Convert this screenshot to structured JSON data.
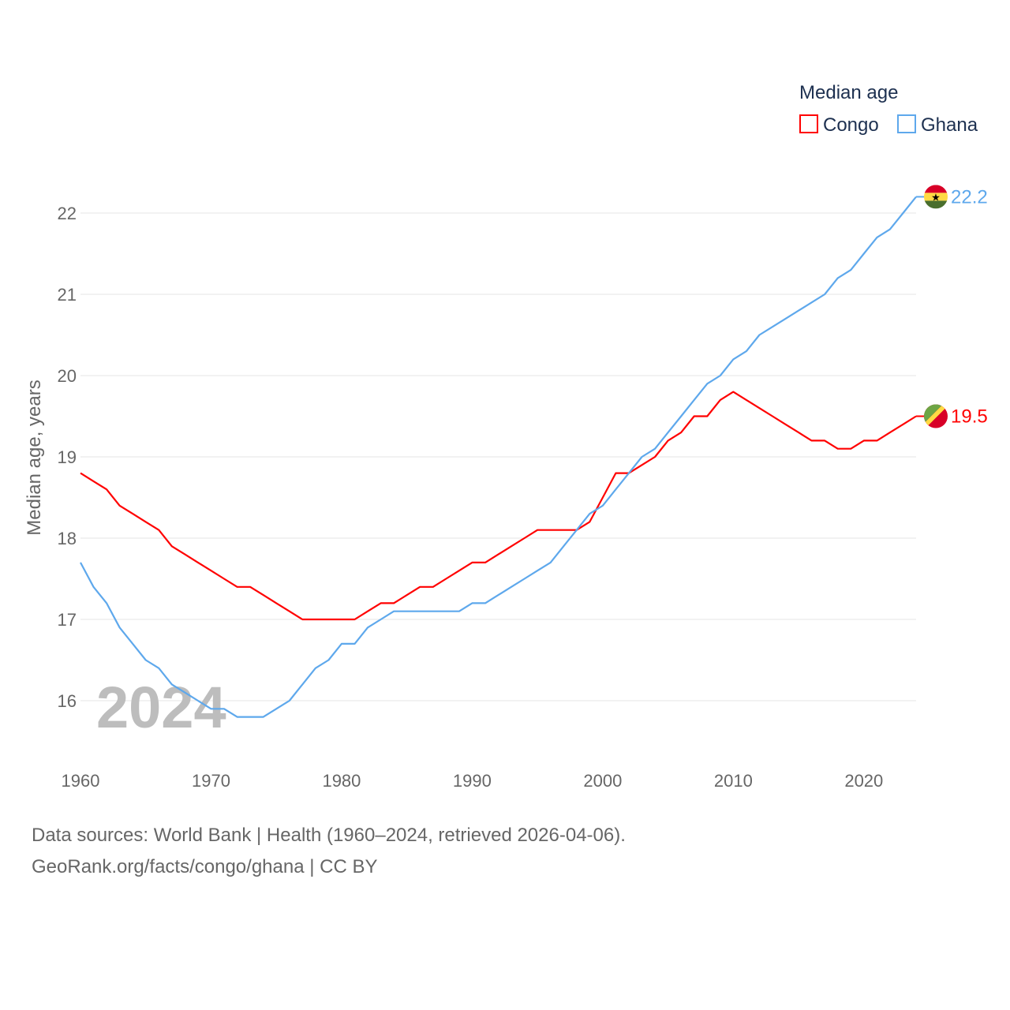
{
  "chart_data": {
    "type": "line",
    "title": "",
    "ylabel": "Median age, years",
    "xlabel": "",
    "xlim": [
      1960,
      2024
    ],
    "ylim": [
      15.4,
      22.2
    ],
    "x_ticks": [
      "1960",
      "1970",
      "1980",
      "1990",
      "2000",
      "2010",
      "2020"
    ],
    "y_ticks": [
      "16",
      "17",
      "18",
      "19",
      "20",
      "21",
      "22"
    ],
    "grid": "horizontal",
    "legend": {
      "title": "Median age",
      "placement": "top-right"
    },
    "year_watermark": "2024",
    "x": [
      1960,
      1961,
      1962,
      1963,
      1964,
      1965,
      1966,
      1967,
      1968,
      1969,
      1970,
      1971,
      1972,
      1973,
      1974,
      1975,
      1976,
      1977,
      1978,
      1979,
      1980,
      1981,
      1982,
      1983,
      1984,
      1985,
      1986,
      1987,
      1988,
      1989,
      1990,
      1991,
      1992,
      1993,
      1994,
      1995,
      1996,
      1997,
      1998,
      1999,
      2000,
      2001,
      2002,
      2003,
      2004,
      2005,
      2006,
      2007,
      2008,
      2009,
      2010,
      2011,
      2012,
      2013,
      2014,
      2015,
      2016,
      2017,
      2018,
      2019,
      2020,
      2021,
      2022,
      2023,
      2024
    ],
    "series": [
      {
        "name": "Congo",
        "color": "#ff0000",
        "end_label": "19.5",
        "flag": "congo-flag",
        "values": [
          18.8,
          18.7,
          18.6,
          18.4,
          18.3,
          18.2,
          18.1,
          17.9,
          17.8,
          17.7,
          17.6,
          17.5,
          17.4,
          17.4,
          17.3,
          17.2,
          17.1,
          17.0,
          17.0,
          17.0,
          17.0,
          17.0,
          17.1,
          17.2,
          17.2,
          17.3,
          17.4,
          17.4,
          17.5,
          17.6,
          17.7,
          17.7,
          17.8,
          17.9,
          18.0,
          18.1,
          18.1,
          18.1,
          18.1,
          18.2,
          18.5,
          18.8,
          18.8,
          18.9,
          19.0,
          19.2,
          19.3,
          19.5,
          19.5,
          19.7,
          19.8,
          19.7,
          19.6,
          19.5,
          19.4,
          19.3,
          19.2,
          19.2,
          19.1,
          19.1,
          19.2,
          19.2,
          19.3,
          19.4,
          19.5
        ]
      },
      {
        "name": "Ghana",
        "color": "#5ea8ec",
        "end_label": "22.2",
        "flag": "ghana-flag",
        "values": [
          17.7,
          17.4,
          17.2,
          16.9,
          16.7,
          16.5,
          16.4,
          16.2,
          16.1,
          16.0,
          15.9,
          15.9,
          15.8,
          15.8,
          15.8,
          15.9,
          16.0,
          16.2,
          16.4,
          16.5,
          16.7,
          16.7,
          16.9,
          17.0,
          17.1,
          17.1,
          17.1,
          17.1,
          17.1,
          17.1,
          17.2,
          17.2,
          17.3,
          17.4,
          17.5,
          17.6,
          17.7,
          17.9,
          18.1,
          18.3,
          18.4,
          18.6,
          18.8,
          19.0,
          19.1,
          19.3,
          19.5,
          19.7,
          19.9,
          20.0,
          20.2,
          20.3,
          20.5,
          20.6,
          20.7,
          20.8,
          20.9,
          21.0,
          21.2,
          21.3,
          21.5,
          21.7,
          21.8,
          22.0,
          22.2
        ]
      }
    ]
  },
  "footer": {
    "source_line": "Data sources: World Bank | Health (1960–2024, retrieved 2026-04-06).",
    "credit_line": "GeoRank.org/facts/congo/ghana | CC BY"
  }
}
